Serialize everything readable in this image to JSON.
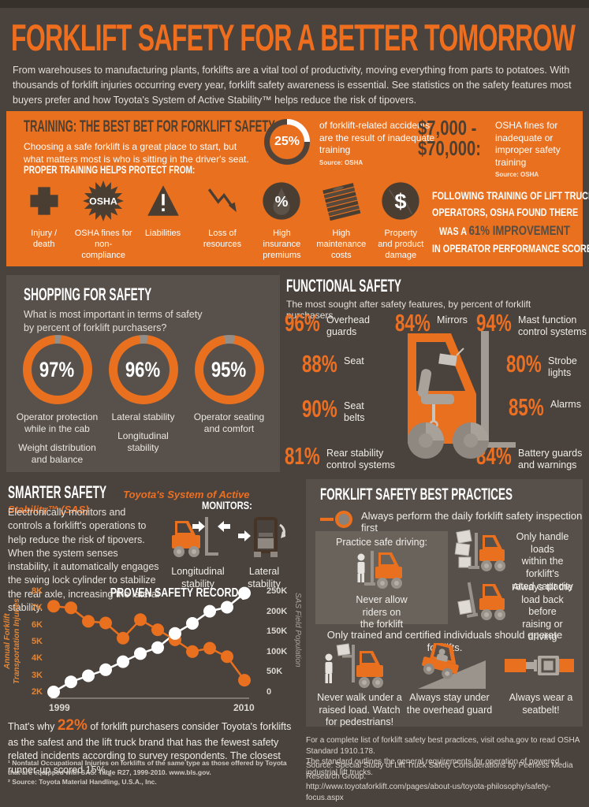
{
  "colors": {
    "accent": "#ED6F21",
    "panel_orange": "#E8701F",
    "page_bg": "#4A433D",
    "panel_gray": "#57504A",
    "light_box": "#6A635B",
    "dark_on_orange": "#4F3F30"
  },
  "header": {
    "title": "FORKLIFT SAFETY FOR A BETTER TOMORROW",
    "intro": "From warehouses to manufacturing plants, forklifts are a vital tool of productivity, moving everything from parts to potatoes. With thousands of forklift injuries occurring every year, forklift safety awareness is essential. See statistics on the safety features most buyers prefer and how Toyota's System of Active Stability™ helps reduce the risk of tipovers."
  },
  "training": {
    "title": "TRAINING: THE BEST BET FOR FORKLIFT SAFETY",
    "subtitle": "Choosing a safe forklift is a great place to start, but what matters most is who is sitting in the driver's seat.",
    "protect_heading": "PROPER TRAINING HELPS PROTECT FROM:",
    "donut": {
      "value": "25%",
      "text": "of forklift-related accidents are the result of inadequate training",
      "source": "Source: OSHA"
    },
    "fines": {
      "range_line1": "$7,000 -",
      "range_line2": "$70,000:",
      "text": "OSHA fines for inadequate or improper safety training",
      "source": "Source: OSHA"
    },
    "hazards": [
      {
        "icon": "injury-cross-icon",
        "label": "Injury /\ndeath"
      },
      {
        "icon": "osha-badge-icon",
        "badge": "OSHA",
        "label": "OSHA fines for\nnon-compliance"
      },
      {
        "icon": "warning-triangle-icon",
        "label": "Liabilities"
      },
      {
        "icon": "loss-arrow-icon",
        "label": "Loss of\nresources"
      },
      {
        "icon": "insurance-percent-icon",
        "label": "High\ninsurance\npremiums"
      },
      {
        "icon": "money-stack-icon",
        "label": "High\nmaintenance\ncosts"
      },
      {
        "icon": "dollar-circle-icon",
        "label": "Property\nand product\ndamage"
      }
    ],
    "result": {
      "line1": "FOLLOWING TRAINING OF LIFT TRUCK",
      "line2": "OPERATORS, OSHA FOUND THERE",
      "line3_prefix": "WAS A ",
      "line3_highlight": "61% IMPROVEMENT",
      "line4": "IN OPERATOR PERFORMANCE SCORES"
    }
  },
  "shopping": {
    "title": "SHOPPING FOR SAFETY",
    "question": "What is most important in terms of safety\nby percent of forklift purchasers?",
    "donuts": [
      {
        "value": "97%",
        "label1": "Operator protection\nwhile in the cab",
        "label2": "Weight distribution\nand balance"
      },
      {
        "value": "96%",
        "label1": "Lateral stability",
        "label2": "Longitudinal stability"
      },
      {
        "value": "95%",
        "label1": "Operator seating\nand comfort",
        "label2": ""
      }
    ]
  },
  "functional": {
    "title": "FUNCTIONAL SAFETY",
    "subtitle": "The most sought after safety features, by percent of forklift purchasers.",
    "stats": [
      {
        "value": "96%",
        "label": "Overhead\nguards"
      },
      {
        "value": "84%",
        "label": "Mirrors"
      },
      {
        "value": "94%",
        "label": "Mast function\ncontrol systems"
      },
      {
        "value": "88%",
        "label": "Seat"
      },
      {
        "value": "80%",
        "label": "Strobe\nlights"
      },
      {
        "value": "90%",
        "label": "Seat\nbelts"
      },
      {
        "value": "85%",
        "label": "Alarms"
      },
      {
        "value": "81%",
        "label": "Rear stability\ncontrol systems"
      },
      {
        "value": "84%",
        "label": "Battery guards\nand warnings"
      }
    ]
  },
  "smarter": {
    "title": "SMARTER SAFETY",
    "sas": "Toyota's System of Active Stability™ (SAS)",
    "body": "Electronically monitors and controls a forklift's operations to help reduce the risk of tipovers. When the system senses instability, it automatically engages the swing lock cylinder to stabilize the rear axle, increasing the lateral stability.",
    "monitors_heading": "MONITORS:",
    "monitor1": "Longitudinal\nstability",
    "monitor2": "Lateral\nstability"
  },
  "chart_data": {
    "type": "line",
    "title": "PROVEN SAFETY RECORD:",
    "title_footnote": "1",
    "x": [
      1999,
      2000,
      2001,
      2002,
      2003,
      2004,
      2005,
      2006,
      2007,
      2008,
      2009,
      2010
    ],
    "x_tick_labels": [
      "1999",
      "2010"
    ],
    "series": [
      {
        "name": "Annual Forklift Transportation Injuries",
        "axis": "left",
        "color": "#E8701F",
        "values": [
          7100,
          7000,
          6200,
          6100,
          5200,
          6300,
          5700,
          5100,
          4400,
          4600,
          4100,
          2700
        ]
      },
      {
        "name": "SAS Field Population",
        "axis": "right",
        "color": "#FFFFFF",
        "values": [
          0,
          25000,
          40000,
          55000,
          75000,
          95000,
          110000,
          145000,
          170000,
          200000,
          210000,
          245000
        ]
      }
    ],
    "left_axis": {
      "label": "Annual Forklift Transportation Injuries",
      "ticks": [
        "8K",
        "7K",
        "6K",
        "5K",
        "4K",
        "3K",
        "2K"
      ],
      "range": [
        2000,
        8000
      ]
    },
    "right_axis": {
      "label": "SAS Field Population",
      "ticks": [
        "250K",
        "200K",
        "150K",
        "100K",
        "50K",
        "0"
      ],
      "range": [
        0,
        250000
      ]
    },
    "grid": false,
    "legend_position": "none"
  },
  "conclusion": {
    "p1": "That's why ",
    "pct": "22%",
    "p2": " of forklift purchasers consider Toyota's forklifts as the safest and the lift truck brand that has the fewest safety related incidents according to survey respondents. The closest runner-up scored 15%.",
    "fn": "2"
  },
  "footnotes": {
    "fn1": "¹ Nonfatal Occupational Injuries on forklifts of the same type as those offered by Toyota that are equipped with SAS. Table R27, 1999-2010. www.bls.gov.",
    "fn2": "² Source: Toyota Material Handling, U.S.A., Inc."
  },
  "best_practices": {
    "title": "FORKLIFT SAFETY BEST PRACTICES",
    "inspection": "Always perform the daily forklift safety inspection first",
    "safe_driving_heading": "Practice safe driving:",
    "never_riders": "Never allow\nriders on\nthe forklift",
    "rated_capacity": "Only handle loads\nwithin the forklift's\nrated capacity",
    "tilt_back": "Always tilt the\nload back before\nraising or driving",
    "trained": "Only trained and certified individuals should operate forklifts.",
    "never_walk": "Never walk under a\nraised load. Watch\nfor pedestrians!",
    "overhead_guard": "Always stay under\nthe overhead guard",
    "seatbelt": "Always wear a\nseatbelt!"
  },
  "footer": {
    "osha_note": "For a complete list of forklift safety best practices, visit osha.gov to read OSHA Standard 1910.178.\nThe standard outlines the general requirements for operation of powered industrial lift trucks.",
    "source": "Source: Special Study of Lift Truck Safety Considerations by Peerless Media Research Group.\nhttp://www.toyotaforklift.com/pages/about-us/toyota-philosophy/safety-focus.aspx"
  }
}
